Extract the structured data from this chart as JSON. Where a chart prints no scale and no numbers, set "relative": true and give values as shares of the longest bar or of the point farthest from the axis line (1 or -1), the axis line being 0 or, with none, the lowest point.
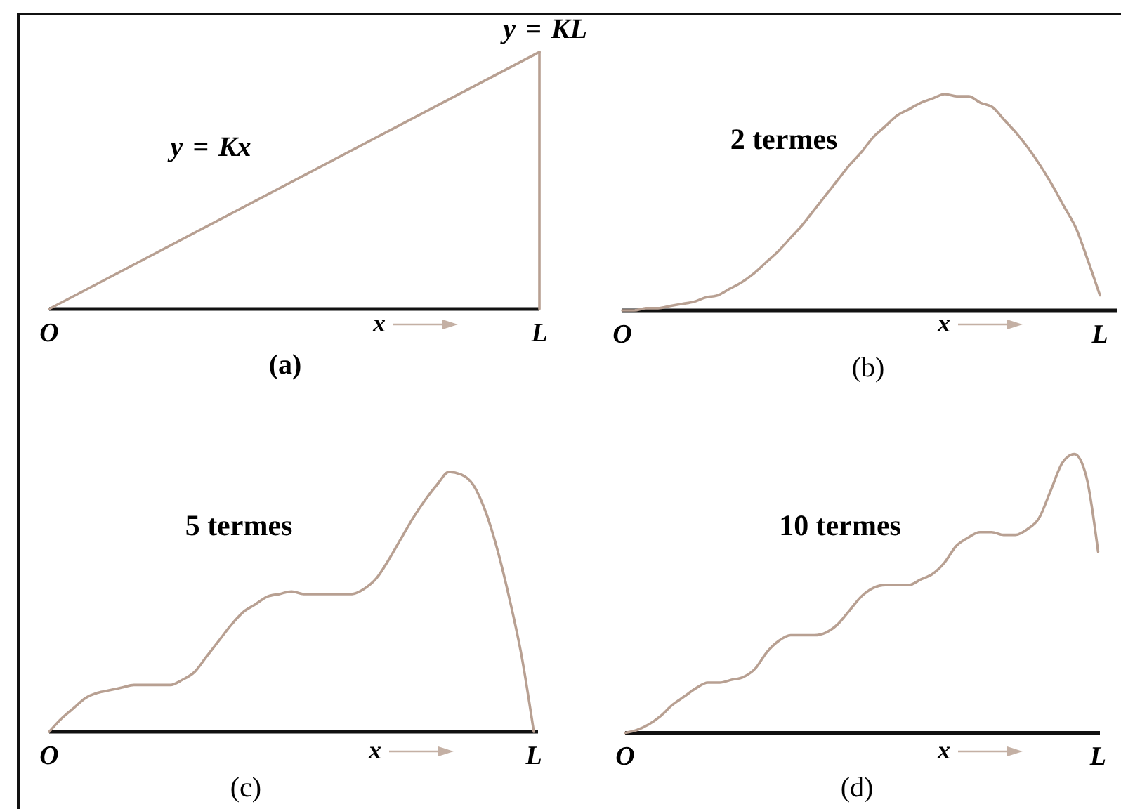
{
  "chart_data": [
    {
      "type": "line",
      "relative": true,
      "categories": [
        "O",
        "L"
      ],
      "values": [
        0,
        1
      ],
      "color": "#b8a092",
      "xlabel": "x",
      "ref_lines": [
        {
          "axis": "x",
          "value": "L",
          "color": "#b8a092"
        }
      ],
      "annotations": [
        "y = Kx",
        {
          "text": "y = KL",
          "x": "L",
          "y": 1
        },
        "(a)"
      ]
    },
    {
      "type": "line",
      "relative": true,
      "categories": [
        "O",
        null,
        null,
        null,
        null,
        null,
        null,
        null,
        null,
        null,
        null,
        null,
        null,
        null,
        null,
        null,
        null,
        null,
        null,
        null,
        null,
        null,
        null,
        null,
        null,
        null,
        null,
        null,
        null,
        null,
        null,
        null,
        null,
        null,
        null,
        null,
        null,
        null,
        null,
        null,
        "L"
      ],
      "values": [
        0,
        0,
        0.01,
        0.01,
        0.02,
        0.03,
        0.04,
        0.06,
        0.07,
        0.1,
        0.13,
        0.17,
        0.22,
        0.27,
        0.33,
        0.39,
        0.46,
        0.53,
        0.6,
        0.67,
        0.73,
        0.8,
        0.85,
        0.9,
        0.93,
        0.96,
        0.98,
        1,
        0.99,
        0.99,
        0.96,
        0.94,
        0.88,
        0.82,
        0.75,
        0.67,
        0.58,
        0.48,
        0.38,
        0.23,
        0.07
      ],
      "color": "#b8a092",
      "xlabel": "x",
      "annotations": [
        "2 termes",
        "(b)"
      ]
    },
    {
      "type": "line",
      "relative": true,
      "categories": [
        "O",
        null,
        null,
        null,
        null,
        null,
        null,
        null,
        null,
        null,
        null,
        null,
        null,
        null,
        null,
        null,
        null,
        null,
        null,
        null,
        null,
        null,
        null,
        null,
        null,
        null,
        null,
        null,
        null,
        null,
        null,
        null,
        null,
        null,
        null,
        null,
        null,
        null,
        null,
        null,
        "L"
      ],
      "values": [
        0,
        0.05,
        0.09,
        0.13,
        0.15,
        0.16,
        0.17,
        0.18,
        0.18,
        0.18,
        0.18,
        0.2,
        0.23,
        0.29,
        0.35,
        0.41,
        0.46,
        0.49,
        0.52,
        0.53,
        0.54,
        0.53,
        0.53,
        0.53,
        0.53,
        0.53,
        0.55,
        0.59,
        0.66,
        0.74,
        0.82,
        0.89,
        0.95,
        1,
        0.99,
        0.95,
        0.85,
        0.7,
        0.51,
        0.29,
        0
      ],
      "color": "#b8a092",
      "xlabel": "x",
      "annotations": [
        "5 termes",
        "(c)"
      ]
    },
    {
      "type": "line",
      "relative": true,
      "categories": [
        "O",
        null,
        null,
        null,
        null,
        null,
        null,
        null,
        null,
        null,
        null,
        null,
        null,
        null,
        null,
        null,
        null,
        null,
        null,
        null,
        null,
        null,
        null,
        null,
        null,
        null,
        null,
        null,
        null,
        null,
        null,
        null,
        null,
        null,
        null,
        null,
        null,
        null,
        null,
        null,
        "L"
      ],
      "values": [
        0,
        0.01,
        0.03,
        0.06,
        0.1,
        0.13,
        0.16,
        0.18,
        0.18,
        0.19,
        0.2,
        0.23,
        0.29,
        0.33,
        0.35,
        0.35,
        0.35,
        0.36,
        0.39,
        0.44,
        0.49,
        0.52,
        0.53,
        0.53,
        0.53,
        0.55,
        0.57,
        0.61,
        0.67,
        0.7,
        0.72,
        0.72,
        0.71,
        0.71,
        0.73,
        0.77,
        0.87,
        0.97,
        1,
        0.92,
        0.65
      ],
      "color": "#b8a092",
      "xlabel": "x",
      "annotations": [
        "10 termes",
        "(d)"
      ]
    }
  ]
}
